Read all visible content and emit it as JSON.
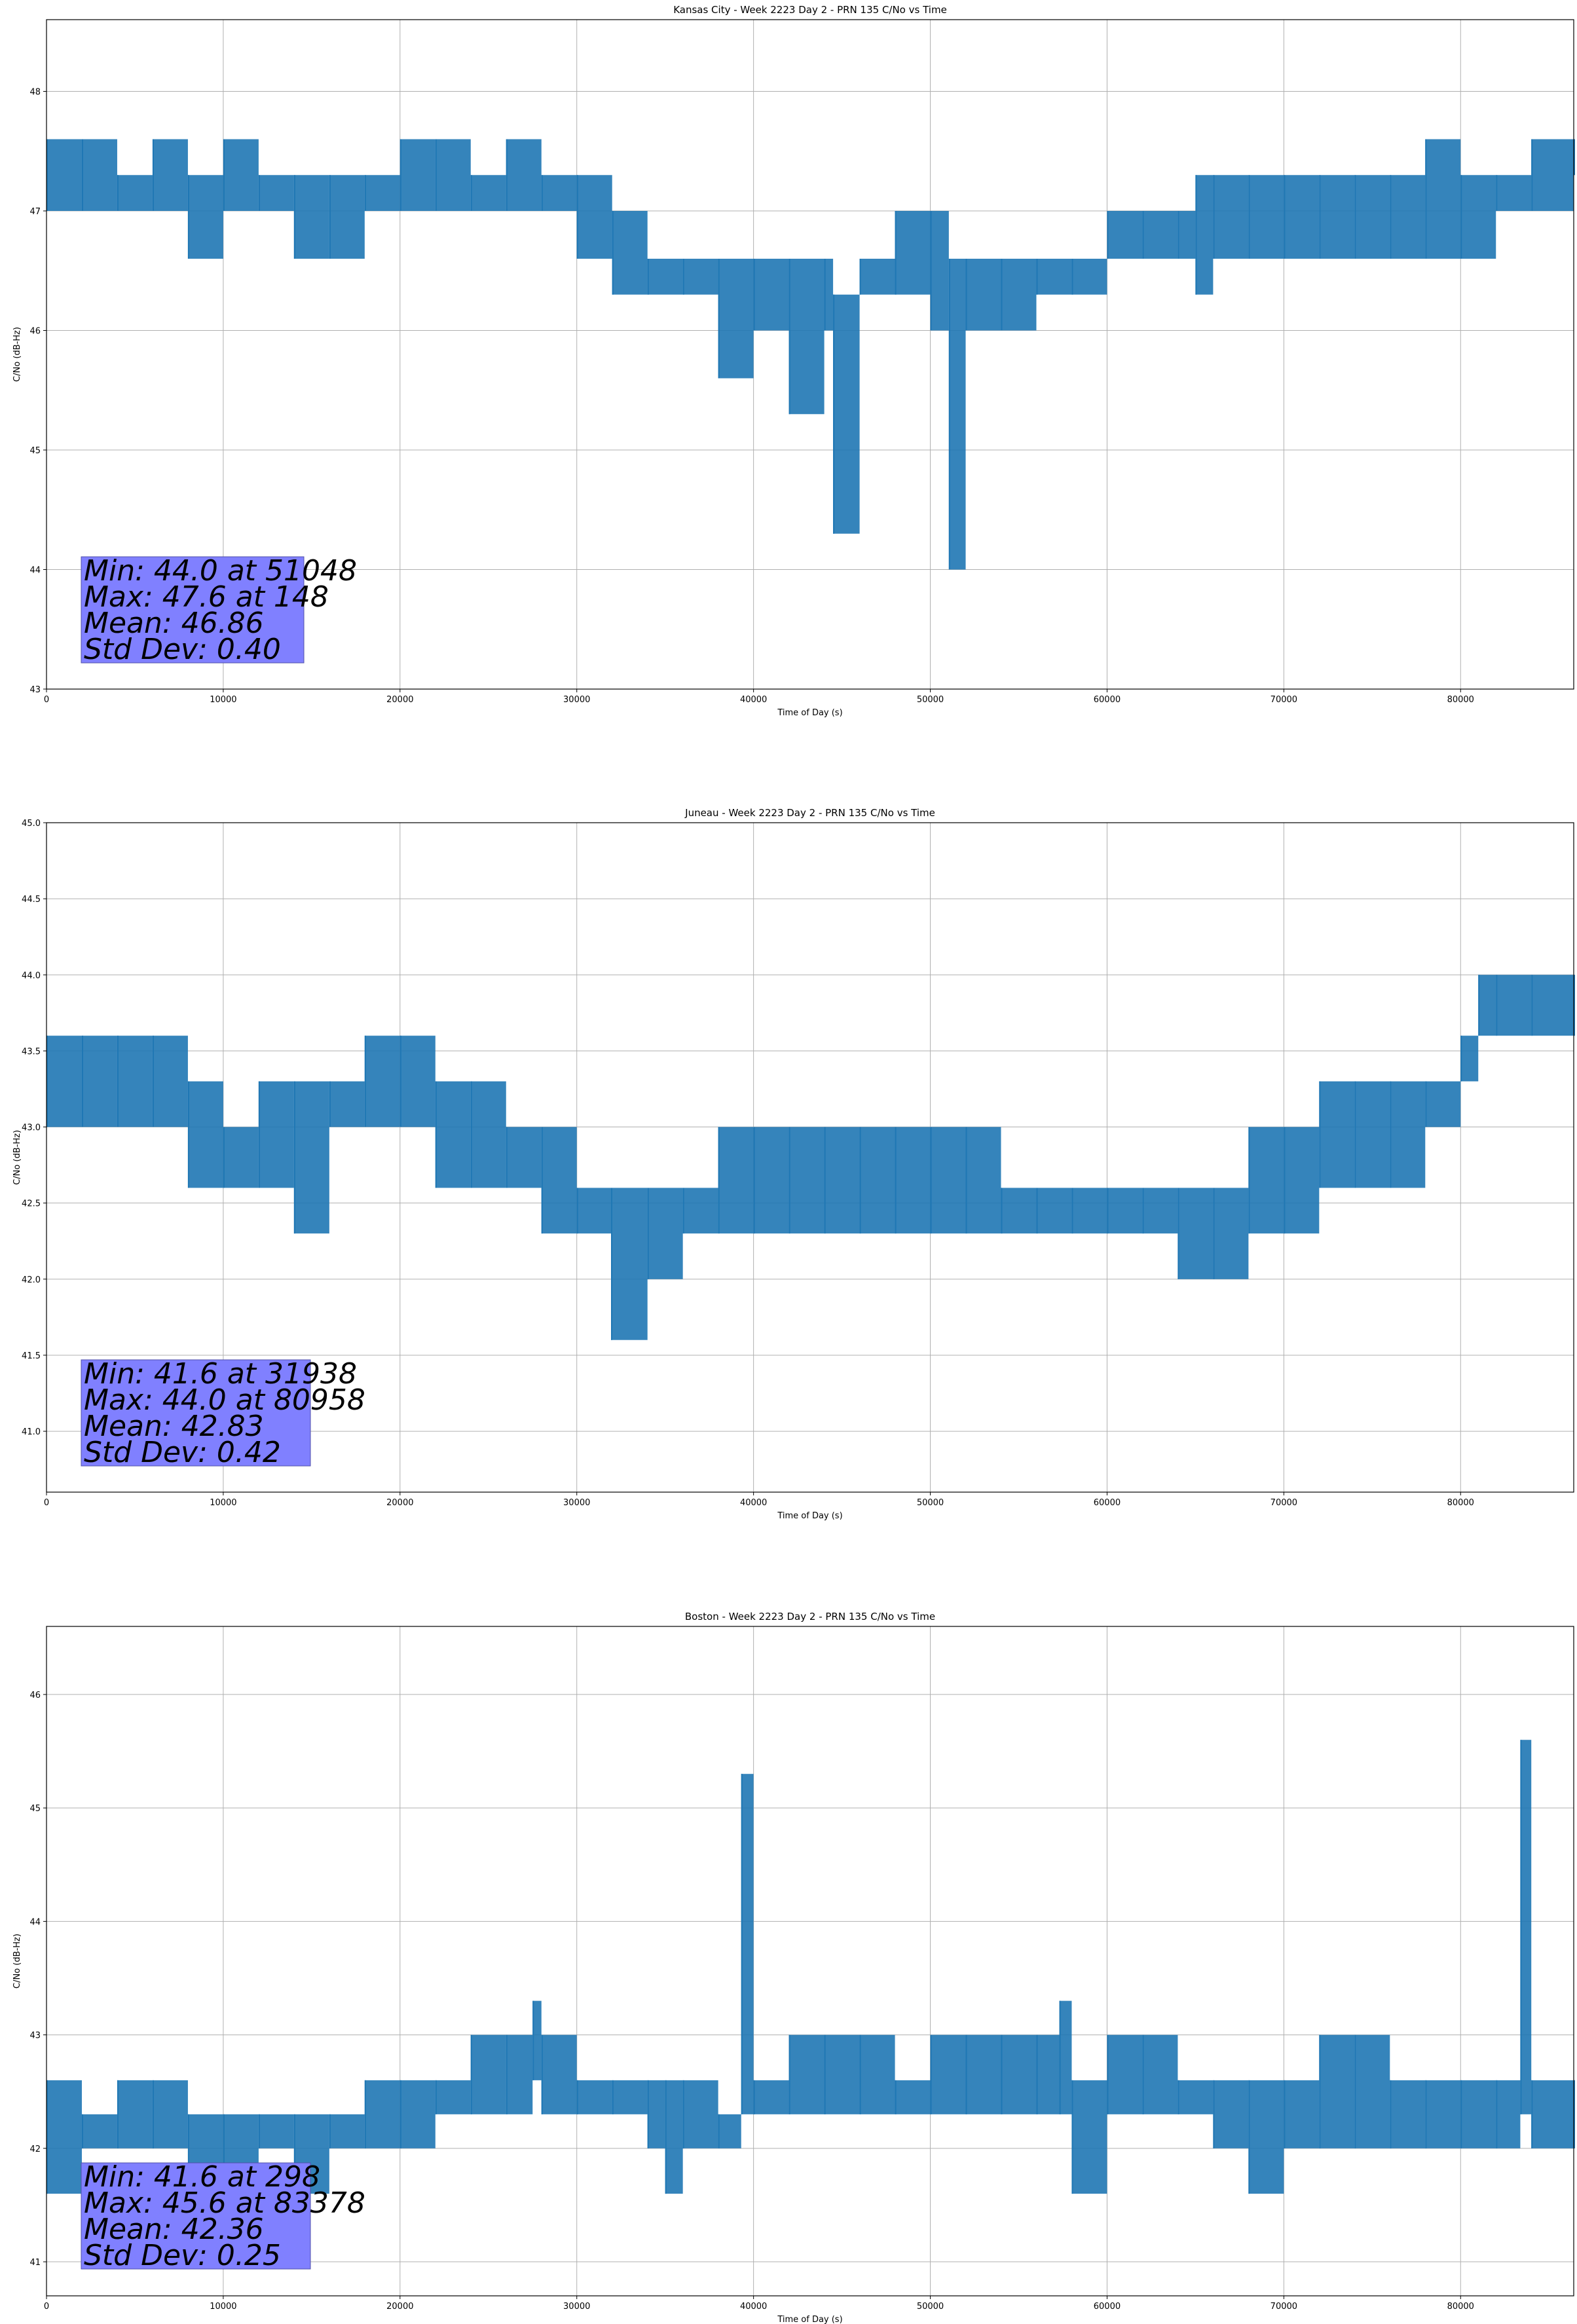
{
  "chart_data": [
    {
      "type": "line",
      "title": "Kansas City - Week 2223 Day 2 - PRN 135 C/No vs Time",
      "xlabel": "Time of Day (s)",
      "ylabel": "C/No (dB-Hz)",
      "xlim": [
        0,
        86400
      ],
      "ylim": [
        43,
        48.6
      ],
      "xticks": [
        0,
        10000,
        20000,
        30000,
        40000,
        50000,
        60000,
        70000,
        80000
      ],
      "yticks": [
        43,
        44,
        45,
        46,
        47,
        48
      ],
      "yticklabels": [
        "43",
        "44",
        "45",
        "46",
        "47",
        "48"
      ],
      "grid": true,
      "color": "#1f77b4",
      "series": [
        {
          "values": [
            [
              0,
              47.0,
              47.6
            ],
            [
              2000,
              47.0,
              47.6
            ],
            [
              4000,
              47.0,
              47.3
            ],
            [
              6000,
              47.0,
              47.6
            ],
            [
              8000,
              46.6,
              47.3
            ],
            [
              10000,
              47.0,
              47.6
            ],
            [
              12000,
              47.0,
              47.3
            ],
            [
              14000,
              46.6,
              47.3
            ],
            [
              16000,
              46.6,
              47.3
            ],
            [
              18000,
              47.0,
              47.3
            ],
            [
              20000,
              47.0,
              47.6
            ],
            [
              22000,
              47.0,
              47.6
            ],
            [
              24000,
              47.0,
              47.3
            ],
            [
              26000,
              47.0,
              47.6
            ],
            [
              28000,
              47.0,
              47.3
            ],
            [
              30000,
              46.6,
              47.3
            ],
            [
              32000,
              46.3,
              47.0
            ],
            [
              34000,
              46.3,
              46.6
            ],
            [
              36000,
              46.3,
              46.6
            ],
            [
              38000,
              45.6,
              46.6
            ],
            [
              40000,
              46.0,
              46.6
            ],
            [
              42000,
              45.3,
              46.6
            ],
            [
              44000,
              46.0,
              46.6
            ],
            [
              44500,
              44.3,
              46.3
            ],
            [
              46000,
              46.3,
              46.6
            ],
            [
              48000,
              46.3,
              47.0
            ],
            [
              50000,
              46.0,
              47.0
            ],
            [
              51048,
              44.0,
              46.6
            ],
            [
              52000,
              46.0,
              46.6
            ],
            [
              54000,
              46.0,
              46.6
            ],
            [
              56000,
              46.3,
              46.6
            ],
            [
              58000,
              46.3,
              46.6
            ],
            [
              60000,
              46.6,
              47.0
            ],
            [
              62000,
              46.6,
              47.0
            ],
            [
              64000,
              46.6,
              47.0
            ],
            [
              65000,
              46.3,
              47.3
            ],
            [
              66000,
              46.6,
              47.3
            ],
            [
              68000,
              46.6,
              47.3
            ],
            [
              70000,
              46.6,
              47.3
            ],
            [
              72000,
              46.6,
              47.3
            ],
            [
              74000,
              46.6,
              47.3
            ],
            [
              76000,
              46.6,
              47.3
            ],
            [
              78000,
              46.6,
              47.6
            ],
            [
              80000,
              46.6,
              47.3
            ],
            [
              82000,
              47.0,
              47.3
            ],
            [
              84000,
              47.0,
              47.6
            ],
            [
              86400,
              47.3,
              47.6
            ]
          ]
        }
      ],
      "annotation": [
        "Min: 44.0 at 51048",
        "Max: 47.6 at 148",
        "Mean: 46.86",
        "Std Dev: 0.40"
      ]
    },
    {
      "type": "line",
      "title": "Juneau - Week 2223 Day 2 - PRN 135 C/No vs Time",
      "xlabel": "Time of Day (s)",
      "ylabel": "C/No (dB-Hz)",
      "xlim": [
        0,
        86400
      ],
      "ylim": [
        40.6,
        45.0
      ],
      "xticks": [
        0,
        10000,
        20000,
        30000,
        40000,
        50000,
        60000,
        70000,
        80000
      ],
      "yticks": [
        41.0,
        41.5,
        42.0,
        42.5,
        43.0,
        43.5,
        44.0,
        44.5,
        45.0
      ],
      "yticklabels": [
        "41.0",
        "41.5",
        "42.0",
        "42.5",
        "43.0",
        "43.5",
        "44.0",
        "44.5",
        "45.0"
      ],
      "grid": true,
      "color": "#1f77b4",
      "series": [
        {
          "values": [
            [
              0,
              43.0,
              43.6
            ],
            [
              2000,
              43.0,
              43.6
            ],
            [
              4000,
              43.0,
              43.6
            ],
            [
              6000,
              43.0,
              43.6
            ],
            [
              8000,
              42.6,
              43.3
            ],
            [
              10000,
              42.6,
              43.0
            ],
            [
              12000,
              42.6,
              43.3
            ],
            [
              14000,
              42.3,
              43.3
            ],
            [
              16000,
              43.0,
              43.3
            ],
            [
              18000,
              43.0,
              43.6
            ],
            [
              20000,
              43.0,
              43.6
            ],
            [
              22000,
              42.6,
              43.3
            ],
            [
              24000,
              42.6,
              43.3
            ],
            [
              26000,
              42.6,
              43.0
            ],
            [
              28000,
              42.3,
              43.0
            ],
            [
              30000,
              42.3,
              42.6
            ],
            [
              31938,
              41.6,
              42.6
            ],
            [
              34000,
              42.0,
              42.6
            ],
            [
              36000,
              42.3,
              42.6
            ],
            [
              38000,
              42.3,
              43.0
            ],
            [
              40000,
              42.3,
              43.0
            ],
            [
              42000,
              42.3,
              43.0
            ],
            [
              44000,
              42.3,
              43.0
            ],
            [
              46000,
              42.3,
              43.0
            ],
            [
              48000,
              42.3,
              43.0
            ],
            [
              50000,
              42.3,
              43.0
            ],
            [
              52000,
              42.3,
              43.0
            ],
            [
              54000,
              42.3,
              42.6
            ],
            [
              56000,
              42.3,
              42.6
            ],
            [
              58000,
              42.3,
              42.6
            ],
            [
              60000,
              42.3,
              42.6
            ],
            [
              62000,
              42.3,
              42.6
            ],
            [
              64000,
              42.0,
              42.6
            ],
            [
              66000,
              42.0,
              42.6
            ],
            [
              68000,
              42.3,
              43.0
            ],
            [
              70000,
              42.3,
              43.0
            ],
            [
              72000,
              42.6,
              43.3
            ],
            [
              74000,
              42.6,
              43.3
            ],
            [
              76000,
              42.6,
              43.3
            ],
            [
              78000,
              43.0,
              43.3
            ],
            [
              80000,
              43.3,
              43.6
            ],
            [
              81000,
              43.6,
              44.0
            ],
            [
              82000,
              43.6,
              44.0
            ],
            [
              84000,
              43.6,
              44.0
            ],
            [
              86400,
              43.6,
              44.0
            ]
          ]
        }
      ],
      "annotation": [
        "Min: 41.6 at 31938",
        "Max: 44.0 at 80958",
        "Mean: 42.83",
        "Std Dev: 0.42"
      ]
    },
    {
      "type": "line",
      "title": "Boston - Week 2223 Day 2 - PRN 135 C/No vs Time",
      "xlabel": "Time of Day (s)",
      "ylabel": "C/No (dB-Hz)",
      "xlim": [
        0,
        86400
      ],
      "ylim": [
        40.7,
        46.6
      ],
      "xticks": [
        0,
        10000,
        20000,
        30000,
        40000,
        50000,
        60000,
        70000,
        80000
      ],
      "yticks": [
        41,
        42,
        43,
        44,
        45,
        46
      ],
      "yticklabels": [
        "41",
        "42",
        "43",
        "44",
        "45",
        "46"
      ],
      "grid": true,
      "color": "#1f77b4",
      "series": [
        {
          "values": [
            [
              0,
              41.6,
              42.6
            ],
            [
              2000,
              42.0,
              42.3
            ],
            [
              4000,
              42.0,
              42.6
            ],
            [
              6000,
              42.0,
              42.6
            ],
            [
              8000,
              41.6,
              42.3
            ],
            [
              10000,
              41.6,
              42.3
            ],
            [
              12000,
              42.0,
              42.3
            ],
            [
              14000,
              41.6,
              42.3
            ],
            [
              16000,
              42.0,
              42.3
            ],
            [
              18000,
              42.0,
              42.6
            ],
            [
              20000,
              42.0,
              42.6
            ],
            [
              22000,
              42.3,
              42.6
            ],
            [
              24000,
              42.3,
              43.0
            ],
            [
              26000,
              42.3,
              43.0
            ],
            [
              27500,
              42.6,
              43.3
            ],
            [
              28000,
              42.3,
              43.0
            ],
            [
              30000,
              42.3,
              42.6
            ],
            [
              32000,
              42.3,
              42.6
            ],
            [
              34000,
              42.0,
              42.6
            ],
            [
              35000,
              41.6,
              42.6
            ],
            [
              36000,
              42.0,
              42.6
            ],
            [
              38000,
              42.0,
              42.3
            ],
            [
              39300,
              42.3,
              45.3
            ],
            [
              40000,
              42.3,
              42.6
            ],
            [
              42000,
              42.3,
              43.0
            ],
            [
              44000,
              42.3,
              43.0
            ],
            [
              46000,
              42.3,
              43.0
            ],
            [
              48000,
              42.3,
              42.6
            ],
            [
              50000,
              42.3,
              43.0
            ],
            [
              52000,
              42.3,
              43.0
            ],
            [
              54000,
              42.3,
              43.0
            ],
            [
              56000,
              42.3,
              43.0
            ],
            [
              57300,
              42.3,
              43.3
            ],
            [
              58000,
              41.6,
              42.6
            ],
            [
              60000,
              42.3,
              43.0
            ],
            [
              62000,
              42.3,
              43.0
            ],
            [
              64000,
              42.3,
              42.6
            ],
            [
              66000,
              42.0,
              42.6
            ],
            [
              68000,
              41.6,
              42.6
            ],
            [
              70000,
              42.0,
              42.6
            ],
            [
              72000,
              42.0,
              43.0
            ],
            [
              74000,
              42.0,
              43.0
            ],
            [
              76000,
              42.0,
              42.6
            ],
            [
              78000,
              42.0,
              42.6
            ],
            [
              80000,
              42.0,
              42.6
            ],
            [
              82000,
              42.0,
              42.6
            ],
            [
              83378,
              42.3,
              45.6
            ],
            [
              84000,
              42.0,
              42.6
            ],
            [
              86400,
              42.0,
              42.6
            ]
          ]
        }
      ],
      "annotation": [
        "Min: 41.6 at 298",
        "Max: 45.6 at 83378",
        "Mean: 42.36",
        "Std Dev: 0.25"
      ]
    }
  ]
}
